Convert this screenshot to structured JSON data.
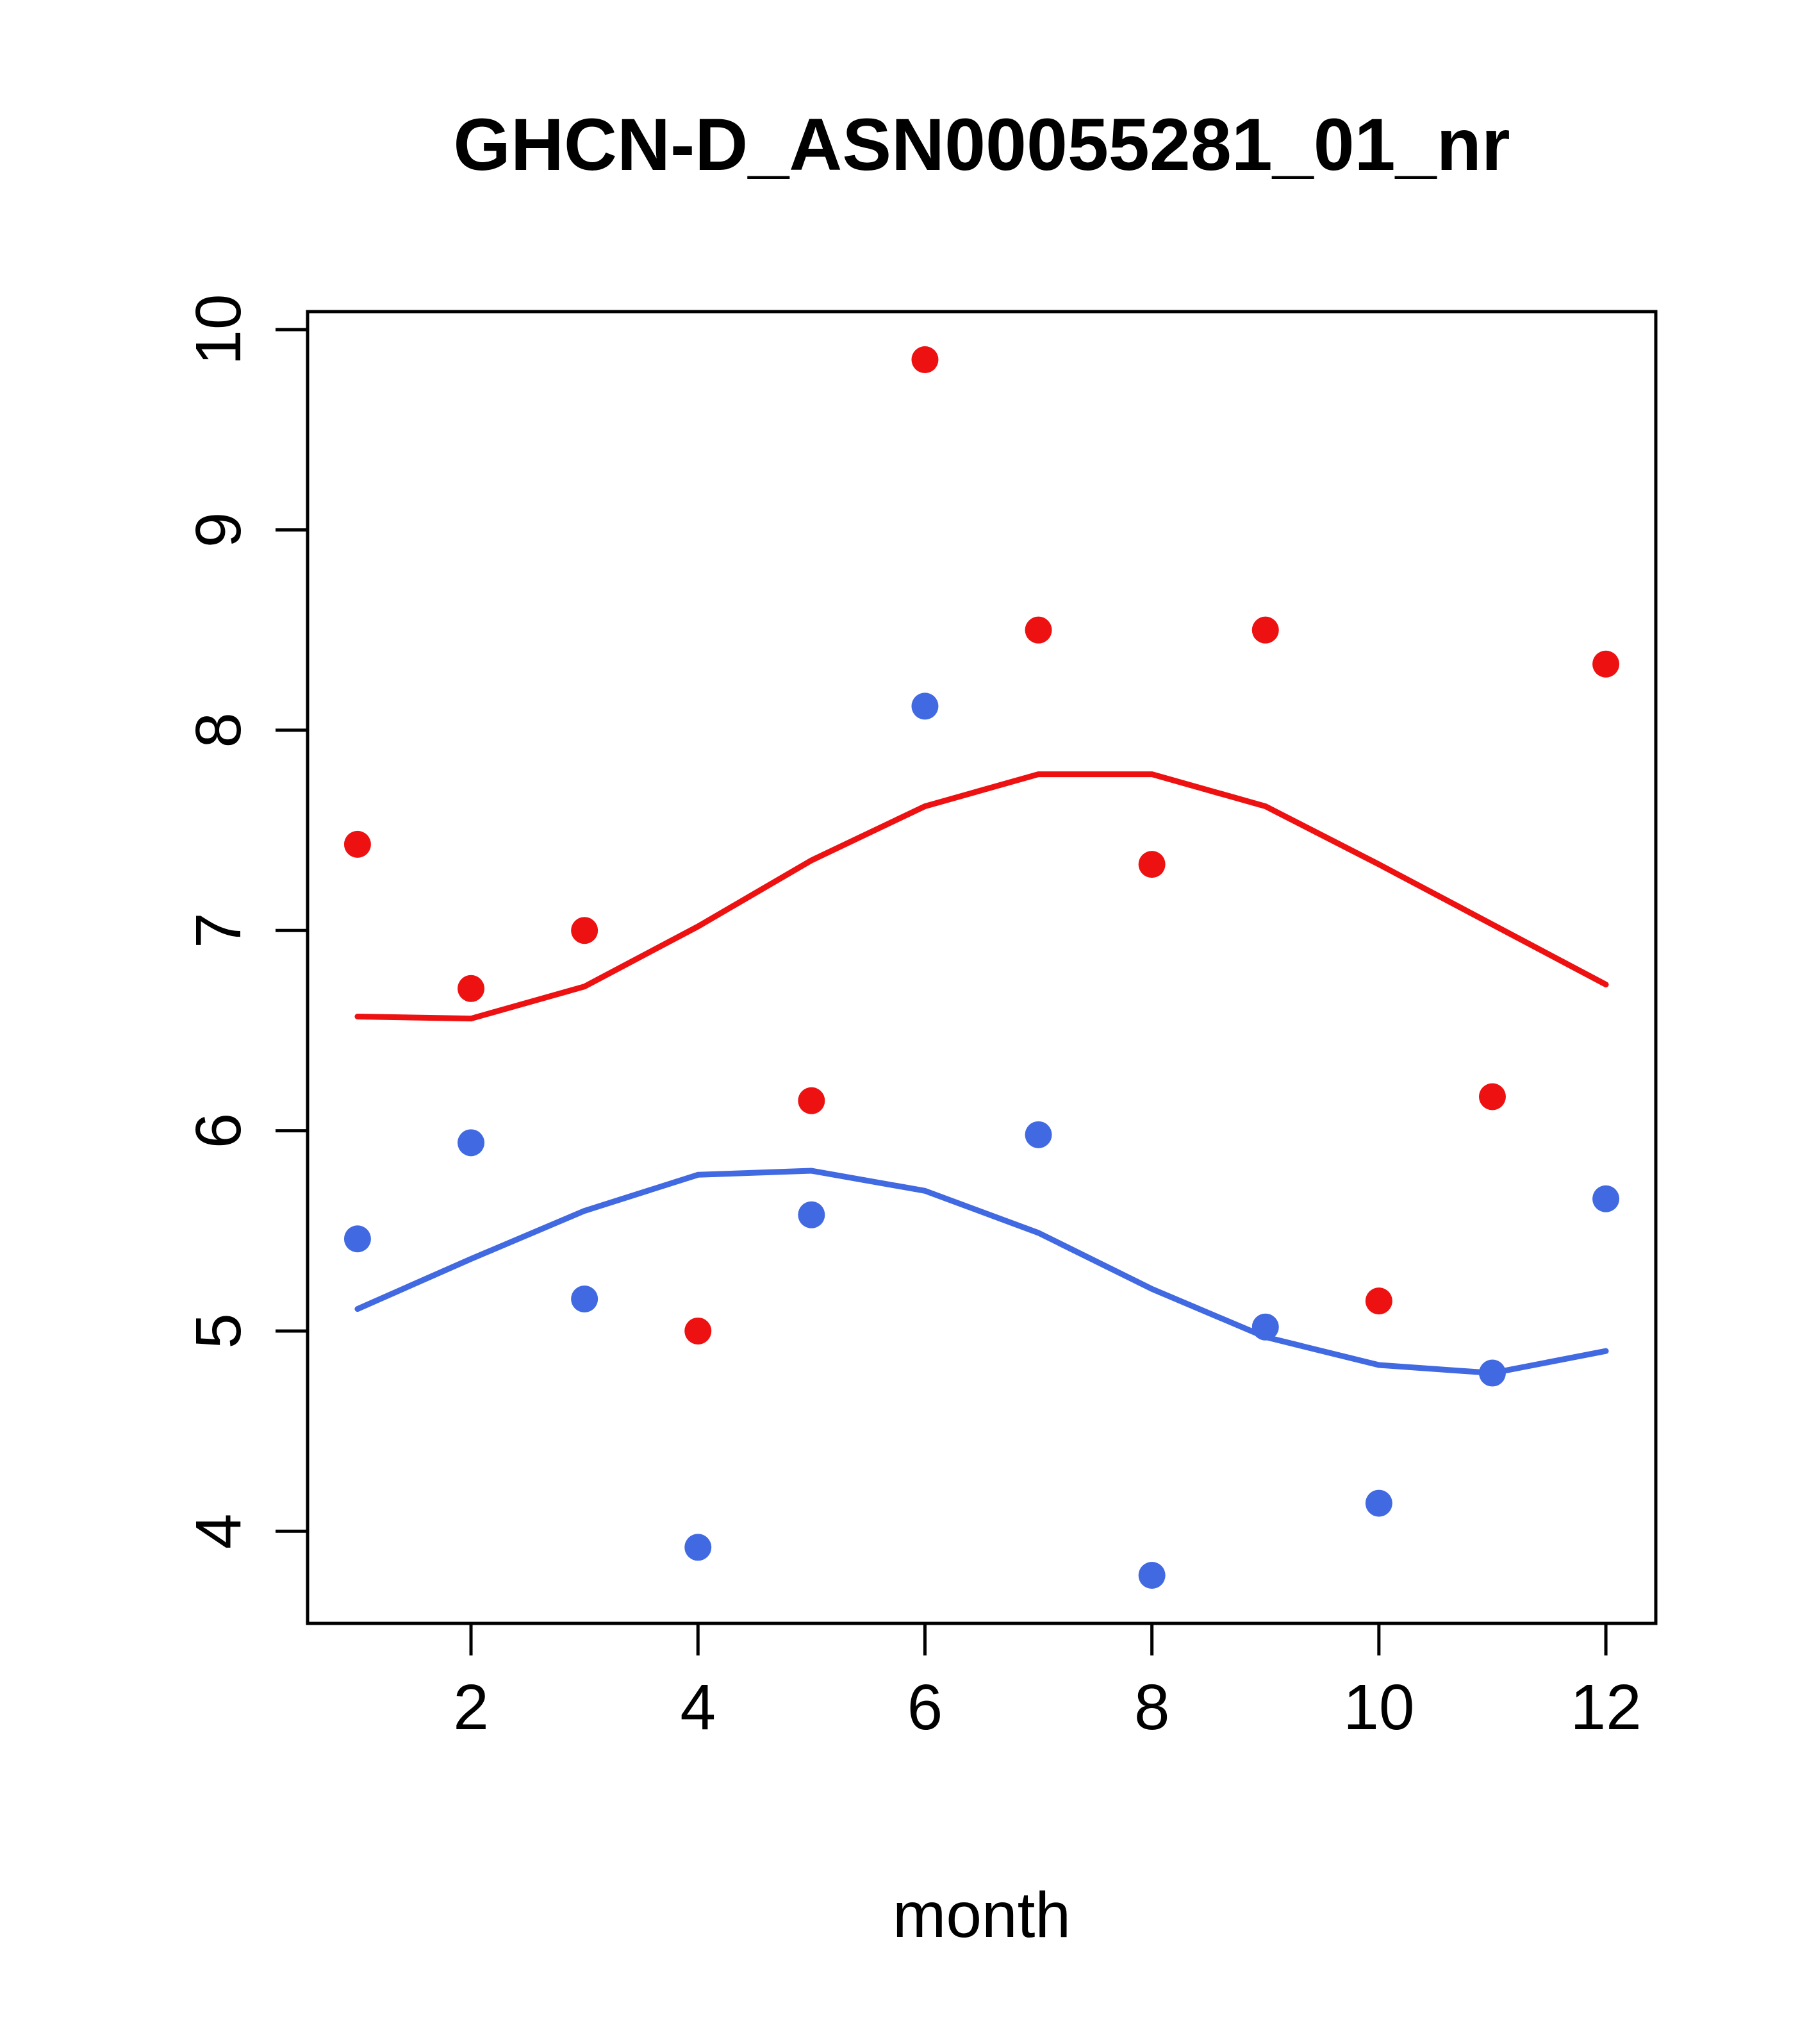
{
  "page": {
    "background": "#ffffff"
  },
  "chart_data": {
    "type": "scatter",
    "title": "GHCN-D_ASN00055281_01_nr",
    "xlabel": "month",
    "ylabel": "",
    "xlim": [
      0.56,
      12.44
    ],
    "ylim": [
      3.54,
      10.09
    ],
    "x_ticks": [
      2,
      4,
      6,
      8,
      10,
      12
    ],
    "y_ticks": [
      4,
      5,
      6,
      7,
      8,
      9,
      10
    ],
    "grid": false,
    "legend": "none",
    "x": [
      1,
      2,
      3,
      4,
      5,
      6,
      7,
      8,
      9,
      10,
      11,
      12
    ],
    "series": [
      {
        "name": "red-points",
        "kind": "points",
        "color": "#ee1111",
        "values": [
          7.43,
          6.71,
          7.0,
          5.0,
          6.15,
          9.85,
          8.5,
          7.33,
          8.5,
          5.15,
          6.17,
          8.33
        ]
      },
      {
        "name": "blue-points",
        "kind": "points",
        "color": "#4169e1",
        "values": [
          5.46,
          5.94,
          5.16,
          3.92,
          5.58,
          8.12,
          5.98,
          3.78,
          5.02,
          4.14,
          4.79,
          5.66
        ]
      },
      {
        "name": "red-smooth-line",
        "kind": "line",
        "color": "#ee1111",
        "values": [
          6.57,
          6.56,
          6.72,
          7.02,
          7.35,
          7.62,
          7.78,
          7.78,
          7.62,
          7.33,
          7.03,
          6.73
        ]
      },
      {
        "name": "blue-smooth-line",
        "kind": "line",
        "color": "#4169e1",
        "values": [
          5.11,
          5.36,
          5.6,
          5.78,
          5.8,
          5.7,
          5.49,
          5.21,
          4.97,
          4.83,
          4.79,
          4.9
        ]
      }
    ],
    "style": {
      "axis_color": "#000000",
      "point_radius": 21,
      "line_width": 9,
      "box": true
    }
  }
}
